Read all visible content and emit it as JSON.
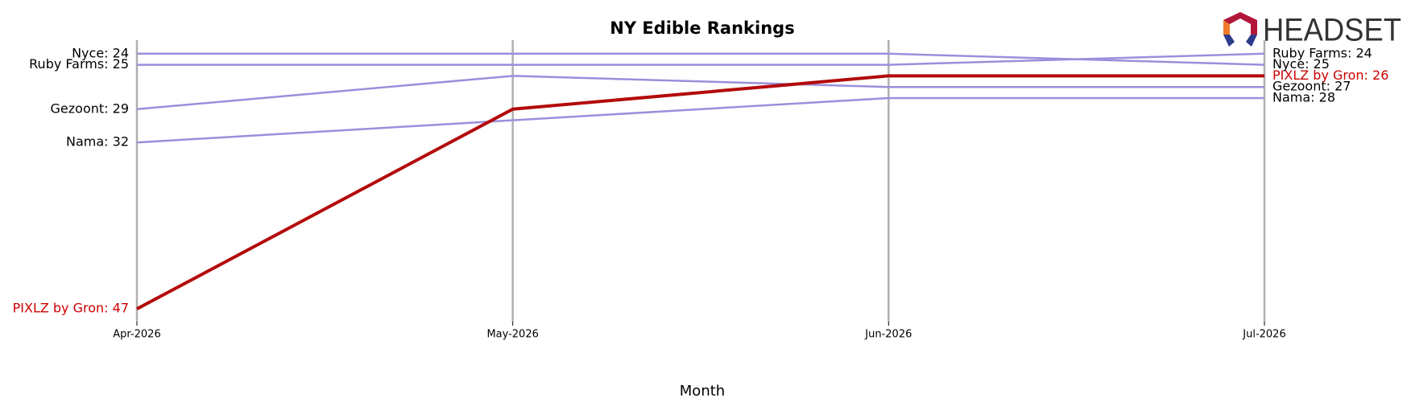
{
  "chart_data": {
    "type": "line",
    "title": "NY Edible Rankings",
    "x_label": "Month",
    "categories": [
      "Apr-2026",
      "May-2026",
      "Jun-2026",
      "Jul-2026"
    ],
    "ylim": [
      48,
      23
    ],
    "grid": "vertical",
    "series": [
      {
        "name": "Nyce",
        "color": "#9b8fdb",
        "label_color": "#000000",
        "width": 2.5,
        "values": [
          24,
          24,
          24,
          25
        ],
        "value_labels": [
          "Nyce: 24",
          null,
          null,
          "Nyce: 25"
        ]
      },
      {
        "name": "Ruby Farms",
        "color": "#9b8fdb",
        "label_color": "#000000",
        "width": 2.5,
        "values": [
          25,
          25,
          25,
          24
        ],
        "value_labels": [
          "Ruby Farms: 25",
          null,
          null,
          "Ruby Farms: 24"
        ]
      },
      {
        "name": "Gezoont",
        "color": "#9b8fdb",
        "label_color": "#000000",
        "width": 2.5,
        "values": [
          29,
          26,
          27,
          27
        ],
        "value_labels": [
          "Gezoont: 29",
          null,
          null,
          "Gezoont: 27"
        ]
      },
      {
        "name": "Nama",
        "color": "#9b8fdb",
        "label_color": "#000000",
        "width": 2.5,
        "values": [
          32,
          30,
          28,
          28
        ],
        "value_labels": [
          "Nama: 32",
          null,
          null,
          "Nama: 28"
        ]
      },
      {
        "name": "PIXLZ by Gron",
        "color": "#b30a0a",
        "label_color": "#cc0000",
        "width": 4,
        "values": [
          47,
          29,
          26,
          26
        ],
        "value_labels": [
          "PIXLZ by Gron: 47",
          null,
          null,
          "PIXLZ by Gron: 26"
        ]
      }
    ]
  },
  "logo": "HEADSET"
}
